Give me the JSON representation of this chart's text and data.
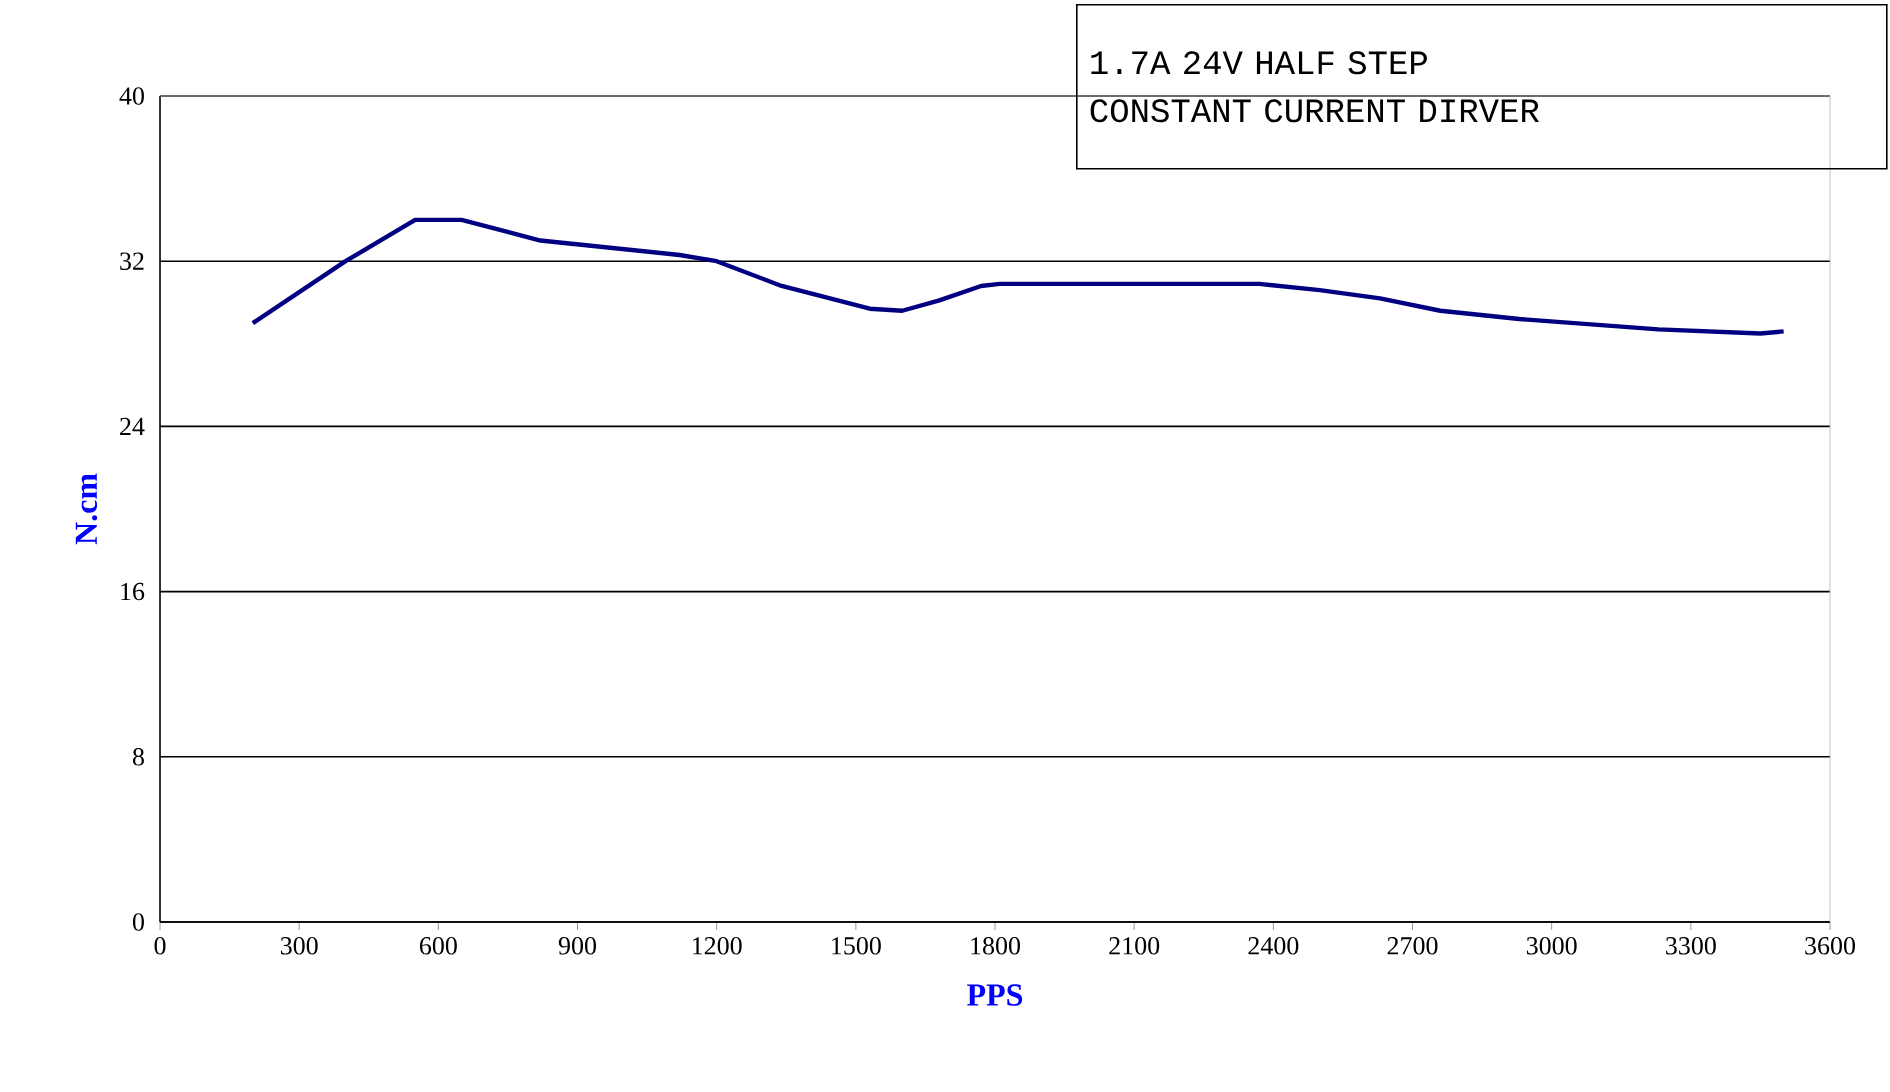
{
  "chart_data": {
    "type": "line",
    "title": "1.7A 24V HALF STEP\nCONSTANT CURRENT DIRVER",
    "xlabel": "PPS",
    "ylabel": "N.cm",
    "x": [
      200,
      400,
      550,
      650,
      820,
      1120,
      1200,
      1340,
      1530,
      1600,
      1680,
      1770,
      1810,
      2370,
      2500,
      2630,
      2760,
      2930,
      3230,
      3450,
      3500
    ],
    "series": [
      {
        "color": "#000080",
        "values": [
          29.0,
          32.0,
          34.0,
          34.0,
          33.0,
          32.3,
          32.0,
          30.8,
          29.7,
          29.6,
          30.1,
          30.8,
          30.9,
          30.9,
          30.6,
          30.2,
          29.6,
          29.2,
          28.7,
          28.5,
          28.6
        ]
      }
    ],
    "xlim": [
      0,
      3600
    ],
    "ylim": [
      0,
      40
    ],
    "xticks": [
      0,
      300,
      600,
      900,
      1200,
      1500,
      1800,
      2100,
      2400,
      2700,
      3000,
      3300,
      3600
    ],
    "yticks": [
      0,
      8,
      16,
      24,
      32,
      40
    ],
    "grid": "y",
    "marker": "none",
    "line_style": "solid"
  }
}
